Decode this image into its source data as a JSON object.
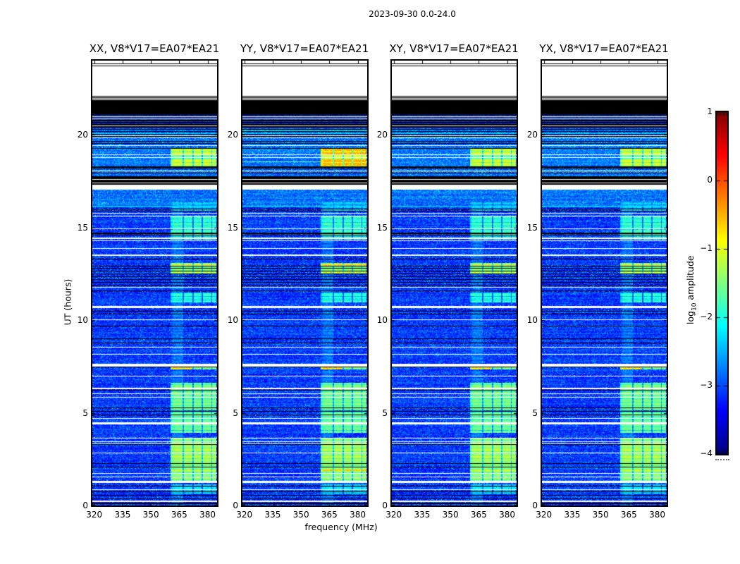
{
  "title": "2023-09-30 0.0-24.0",
  "xlabel": "frequency (MHz)",
  "ylabel": "UT (hours)",
  "colorbar": {
    "label": "log10 amplitude",
    "label_pre": "log",
    "label_sub": "10",
    "label_post": " amplitude",
    "tick_labels": [
      "1",
      "0",
      "−1",
      "−2",
      "−3",
      "−4"
    ]
  },
  "chart_data": {
    "type": "heatmap",
    "title": "2023-09-30 0.0-24.0",
    "xlabel": "frequency (MHz)",
    "ylabel": "UT (hours)",
    "colorbar_label": "log10 amplitude",
    "colormap": "jet",
    "value_scale": "log10 amplitude",
    "value_range": [
      -4,
      1
    ],
    "x_range": [
      319,
      385
    ],
    "y_range": [
      0,
      24
    ],
    "x_ticks": [
      320,
      335,
      350,
      365,
      380
    ],
    "y_ticks": [
      0,
      5,
      10,
      15,
      20
    ],
    "colorbar_ticks": [
      1,
      0,
      -1,
      -2,
      -3,
      -4
    ],
    "panels": [
      {
        "pol": "XX",
        "title": "XX, V8*V17=EA07*EA21"
      },
      {
        "pol": "YY",
        "title": "YY, V8*V17=EA07*EA21",
        "green_rows": [
          20.23,
          18.56
        ]
      },
      {
        "pol": "XY",
        "title": "XY, V8*V17=EA07*EA21"
      },
      {
        "pol": "YX",
        "title": "YX, V8*V17=EA07*EA21"
      }
    ],
    "background_level": -3.35,
    "features": {
      "bands": [
        {
          "ut": [
            22.15,
            24.0
          ],
          "type": "white"
        },
        {
          "ut": [
            21.85,
            22.15
          ],
          "type": "stripe_bw"
        },
        {
          "ut": [
            21.1,
            21.85
          ],
          "type": "black"
        },
        {
          "ut": [
            20.35,
            21.1
          ],
          "type": "stripe_dark"
        },
        {
          "ut": [
            17.3,
            17.75
          ],
          "type": "black"
        },
        {
          "ut": [
            17.05,
            17.3
          ],
          "type": "white"
        }
      ],
      "bright_bands": [
        [
          17.75,
          20.35,
          0.3
        ],
        [
          16.1,
          17.05,
          0.28
        ],
        [
          18.3,
          19.25,
          0.12
        ]
      ],
      "column_mhz": [
        360.3,
        384.8
      ],
      "column_gaps_mhz": [
        [
          366.6,
          367.4
        ],
        [
          371.8,
          372.6
        ],
        [
          376.9,
          377.7
        ],
        [
          381.9,
          382.5
        ]
      ],
      "blocks": [
        {
          "ut": [
            18.3,
            19.25
          ],
          "v": [
            -1.0,
            -0.45,
            -1.0,
            -1.0
          ],
          "dim": [
            18.7,
            18.85
          ]
        },
        {
          "ut": [
            14.35,
            15.65
          ],
          "v": -1.75
        },
        {
          "ut": [
            12.5,
            13.1
          ],
          "v": -1.4
        },
        {
          "ut": [
            12.55,
            12.68
          ],
          "v": [
            -0.8,
            -0.6,
            -0.85,
            -0.85
          ]
        },
        {
          "ut": [
            12.93,
            13.06
          ],
          "v": [
            -0.85,
            -0.55,
            -0.9,
            -0.9
          ]
        },
        {
          "ut": [
            10.95,
            11.5
          ],
          "v": -1.85
        },
        {
          "ut": [
            7.35,
            7.53
          ],
          "v": [
            -0.55,
            -0.5,
            -0.6,
            -0.55
          ],
          "freq": [
            360.3,
            371.5
          ]
        },
        {
          "ut": [
            7.35,
            7.53
          ],
          "v": -1.35,
          "freq": [
            371.5,
            384.8
          ]
        },
        {
          "ut": [
            5.15,
            6.6
          ],
          "v": -1.4
        },
        {
          "ut": [
            3.9,
            5.05
          ],
          "v": -1.5
        },
        {
          "ut": [
            1.35,
            3.6
          ],
          "v": -1.3
        },
        {
          "ut": [
            2.3,
            3.3
          ],
          "v": -1.18
        },
        {
          "ut": [
            1.88,
            1.99
          ],
          "v": [
            -1.0,
            -0.55,
            -1.0,
            -1.0
          ]
        },
        {
          "ut": [
            0.6,
            1.15
          ],
          "v": -2.1
        },
        {
          "ut": [
            15.9,
            16.35
          ],
          "v": -2.3
        },
        {
          "ut": [
            0.0,
            16.1
          ],
          "v": -2.7,
          "freq": [
            360.3,
            367.0
          ]
        }
      ],
      "cyan_rows": [
        20.07,
        16.18
      ],
      "white_lines": [
        [
          21.0,
          1
        ],
        [
          20.87,
          1
        ],
        [
          20.5,
          1
        ],
        [
          19.98,
          1
        ],
        [
          19.85,
          1
        ],
        [
          19.45,
          1
        ],
        [
          18.95,
          1
        ],
        [
          18.8,
          1
        ],
        [
          18.05,
          1
        ],
        [
          17.62,
          1
        ],
        [
          17.42,
          1
        ],
        [
          15.8,
          1
        ],
        [
          15.65,
          1
        ],
        [
          14.96,
          1
        ],
        [
          14.45,
          2
        ],
        [
          14.3,
          1
        ],
        [
          13.88,
          1
        ],
        [
          13.55,
          2
        ],
        [
          11.8,
          1
        ],
        [
          10.78,
          3
        ],
        [
          10.03,
          1
        ],
        [
          8.57,
          1
        ],
        [
          8.19,
          1
        ],
        [
          7.65,
          4
        ],
        [
          7.0,
          1
        ],
        [
          6.35,
          2
        ],
        [
          6.05,
          1
        ],
        [
          5.87,
          1
        ],
        [
          4.73,
          1
        ],
        [
          4.5,
          3
        ],
        [
          3.67,
          1
        ],
        [
          3.48,
          1
        ],
        [
          3.36,
          1
        ],
        [
          2.84,
          1
        ],
        [
          1.74,
          1
        ],
        [
          1.55,
          1
        ],
        [
          1.32,
          3
        ],
        [
          0.87,
          1
        ],
        [
          0.28,
          2
        ]
      ],
      "black_lines": [
        [
          23.84,
          1
        ],
        [
          23.75,
          1
        ],
        [
          20.3,
          1
        ],
        [
          20.18,
          1
        ],
        [
          20.05,
          1
        ],
        [
          19.92,
          1
        ],
        [
          19.68,
          1
        ],
        [
          19.55,
          1
        ],
        [
          19.42,
          1
        ],
        [
          19.3,
          1
        ],
        [
          18.28,
          2
        ],
        [
          18.18,
          1
        ],
        [
          17.95,
          1
        ],
        [
          16.0,
          1
        ],
        [
          15.9,
          1
        ],
        [
          14.72,
          2
        ],
        [
          14.6,
          1
        ],
        [
          13.3,
          1
        ],
        [
          12.95,
          1
        ],
        [
          12.8,
          1
        ],
        [
          12.65,
          1
        ],
        [
          12.5,
          1
        ],
        [
          12.35,
          1
        ],
        [
          12.2,
          1
        ],
        [
          12.05,
          1
        ],
        [
          11.9,
          1
        ],
        [
          11.6,
          1
        ],
        [
          10.5,
          1
        ],
        [
          10.35,
          1
        ],
        [
          9.7,
          1
        ],
        [
          9.0,
          1
        ],
        [
          8.8,
          1
        ],
        [
          7.5,
          1
        ],
        [
          6.25,
          1
        ],
        [
          5.3,
          1
        ],
        [
          5.1,
          1
        ],
        [
          4.92,
          1
        ],
        [
          3.3,
          1
        ],
        [
          2.27,
          1
        ],
        [
          2.1,
          1
        ],
        [
          1.06,
          1
        ],
        [
          0.76,
          1
        ],
        [
          0.57,
          1
        ],
        [
          0.38,
          1
        ],
        [
          0.15,
          2
        ]
      ]
    }
  }
}
